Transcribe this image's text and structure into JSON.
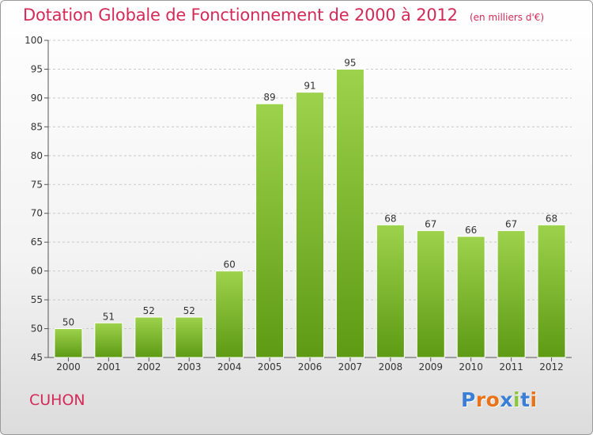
{
  "header": {
    "title": "Dotation Globale de Fonctionnement de 2000 à 2012",
    "unit": "(en milliers d'€)"
  },
  "footer": {
    "commune": "CUHON",
    "logo_text": "Proxiti",
    "logo_colors": [
      "#3a7fd5",
      "#e8731a",
      "#e8731a",
      "#3a7fd5",
      "#8cc63f",
      "#3a7fd5",
      "#e8731a"
    ]
  },
  "chart_data": {
    "type": "bar",
    "categories": [
      "2000",
      "2001",
      "2002",
      "2003",
      "2004",
      "2005",
      "2006",
      "2007",
      "2008",
      "2009",
      "2010",
      "2011",
      "2012"
    ],
    "values": [
      50,
      51,
      52,
      52,
      60,
      89,
      91,
      95,
      68,
      67,
      66,
      67,
      68
    ],
    "data_labels": [
      "50",
      "51",
      "52",
      "52",
      "60",
      "89",
      "91",
      "95",
      "68",
      "67",
      "66",
      "67",
      "68"
    ],
    "title": "Dotation Globale de Fonctionnement de 2000 à 2012",
    "xlabel": "",
    "ylabel": "",
    "ylim": [
      45,
      100
    ],
    "yticks": [
      45,
      50,
      55,
      60,
      65,
      70,
      75,
      80,
      85,
      90,
      95,
      100
    ],
    "grid": true,
    "bar_color_top": "#9dd24c",
    "bar_color_bottom": "#5e9a14"
  }
}
